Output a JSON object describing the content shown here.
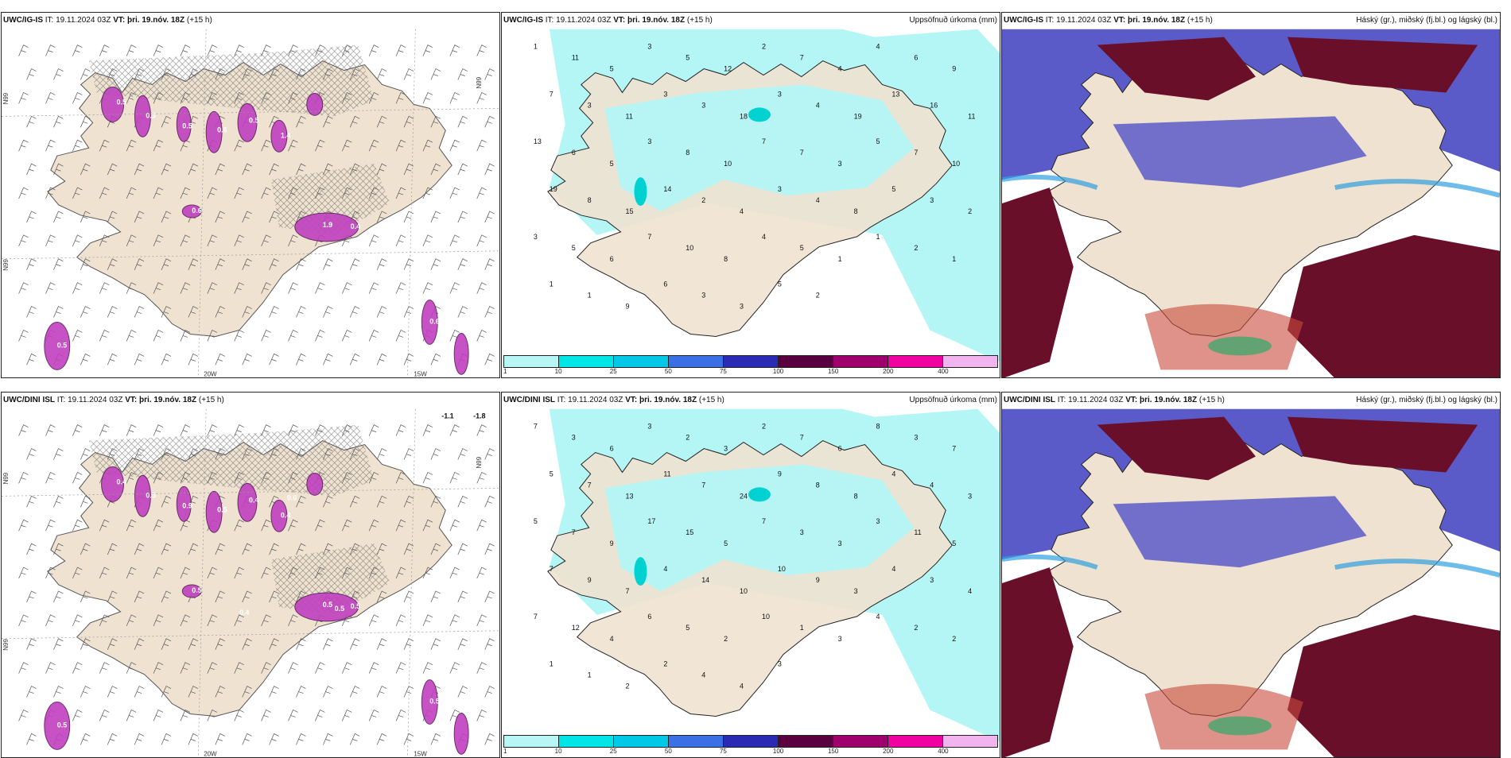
{
  "panels": [
    {
      "model": "UWC/IG-IS",
      "it_label": "IT:",
      "it_value": "19.11.2024 03Z",
      "vt_label": "VT:",
      "vt_value": "þri. 19.nóv. 18Z",
      "lead": "(+15 h)",
      "title_right": "",
      "axis_labels": [
        "N99",
        "N99",
        "N99",
        "20W",
        "15W"
      ],
      "icing_labels": [
        "0.5",
        "0.5",
        "0.5",
        "0.6",
        "0.5",
        "1.4",
        "1.9",
        "0.4",
        "0.6",
        "0.5",
        "0.6"
      ]
    },
    {
      "model": "UWC/IG-IS",
      "it_label": "IT:",
      "it_value": "19.11.2024 03Z",
      "vt_label": "VT:",
      "vt_value": "þri. 19.nóv. 18Z",
      "lead": "(+15 h)",
      "title_right": "Uppsöfnuð úrkoma (mm)",
      "values": [
        "1",
        "11",
        "5",
        "3",
        "5",
        "12",
        "2",
        "7",
        "4",
        "4",
        "6",
        "9",
        "7",
        "3",
        "11",
        "3",
        "3",
        "18",
        "3",
        "4",
        "19",
        "13",
        "16",
        "11",
        "13",
        "6",
        "5",
        "3",
        "8",
        "10",
        "7",
        "7",
        "3",
        "5",
        "7",
        "10",
        "19",
        "8",
        "15",
        "14",
        "2",
        "4",
        "3",
        "4",
        "8",
        "5",
        "3",
        "2",
        "3",
        "5",
        "6",
        "7",
        "10",
        "8",
        "4",
        "5",
        "1",
        "1",
        "2",
        "1",
        "1",
        "1",
        "9",
        "6",
        "3",
        "3",
        "5",
        "2"
      ]
    },
    {
      "model": "UWC/IG-IS",
      "it_label": "IT:",
      "it_value": "19.11.2024 03Z",
      "vt_label": "VT:",
      "vt_value": "þri. 19.nóv. 18Z",
      "lead": "(+15 h)",
      "title_right": "Háský (gr.), miðský (fj.bl.) og lágský (bl.)"
    },
    {
      "model": "UWC/DINI ISL",
      "it_label": "IT:",
      "it_value": "19.11.2024 03Z",
      "vt_label": "VT:",
      "vt_value": "þri. 19.nóv. 18Z",
      "lead": "(+15 h)",
      "title_right": "",
      "axis_labels": [
        "N99",
        "N99",
        "N99",
        "20W",
        "15W"
      ],
      "corner_values": [
        "-1.1",
        "-1.8"
      ],
      "icing_labels": [
        "0.4",
        "0.5",
        "0.9",
        "0.5",
        "0.4",
        "0.4",
        "0.5",
        "0.5",
        "0.5",
        "0.5",
        "0.5",
        "0.4",
        "0.6",
        "0.5"
      ]
    },
    {
      "model": "UWC/DINI ISL",
      "it_label": "IT:",
      "it_value": "19.11.2024 03Z",
      "vt_label": "VT:",
      "vt_value": "þri. 19.nóv. 18Z",
      "lead": "(+15 h)",
      "title_right": "Uppsöfnuð úrkoma (mm)",
      "values": [
        "7",
        "3",
        "6",
        "3",
        "2",
        "3",
        "2",
        "7",
        "6",
        "8",
        "3",
        "7",
        "5",
        "7",
        "13",
        "11",
        "7",
        "24",
        "9",
        "8",
        "8",
        "4",
        "4",
        "3",
        "5",
        "7",
        "9",
        "17",
        "15",
        "5",
        "7",
        "3",
        "3",
        "3",
        "11",
        "5",
        "7",
        "9",
        "7",
        "4",
        "14",
        "10",
        "10",
        "9",
        "3",
        "4",
        "3",
        "4",
        "7",
        "12",
        "4",
        "6",
        "5",
        "2",
        "10",
        "1",
        "3",
        "4",
        "2",
        "2",
        "1",
        "1",
        "2",
        "2",
        "4",
        "4",
        "3"
      ]
    },
    {
      "model": "UWC/DINI ISL",
      "it_label": "IT:",
      "it_value": "19.11.2024 03Z",
      "vt_label": "VT:",
      "vt_value": "þri. 19.nóv. 18Z",
      "lead": "(+15 h)",
      "title_right": "Háský (gr.), miðský (fj.bl.) og lágský (bl.)"
    }
  ],
  "legend": {
    "labels": [
      "1",
      "10",
      "25",
      "50",
      "75",
      "100",
      "150",
      "200",
      "400"
    ],
    "colors": [
      "#b8f5f5",
      "#00e6e6",
      "#00c8e6",
      "#3a6fe6",
      "#2a2ab4",
      "#5a0040",
      "#a0006e",
      "#f000a0",
      "#f2b4ee"
    ]
  },
  "colors": {
    "land": "#efe2d0",
    "sea": "#ffffff",
    "precip_light": "#b4f5f5",
    "icing": "#c040c0",
    "cloud_high": "#6a0f2a",
    "cloud_mid": "#5a5ac8",
    "cloud_low": "#30a0e0"
  }
}
